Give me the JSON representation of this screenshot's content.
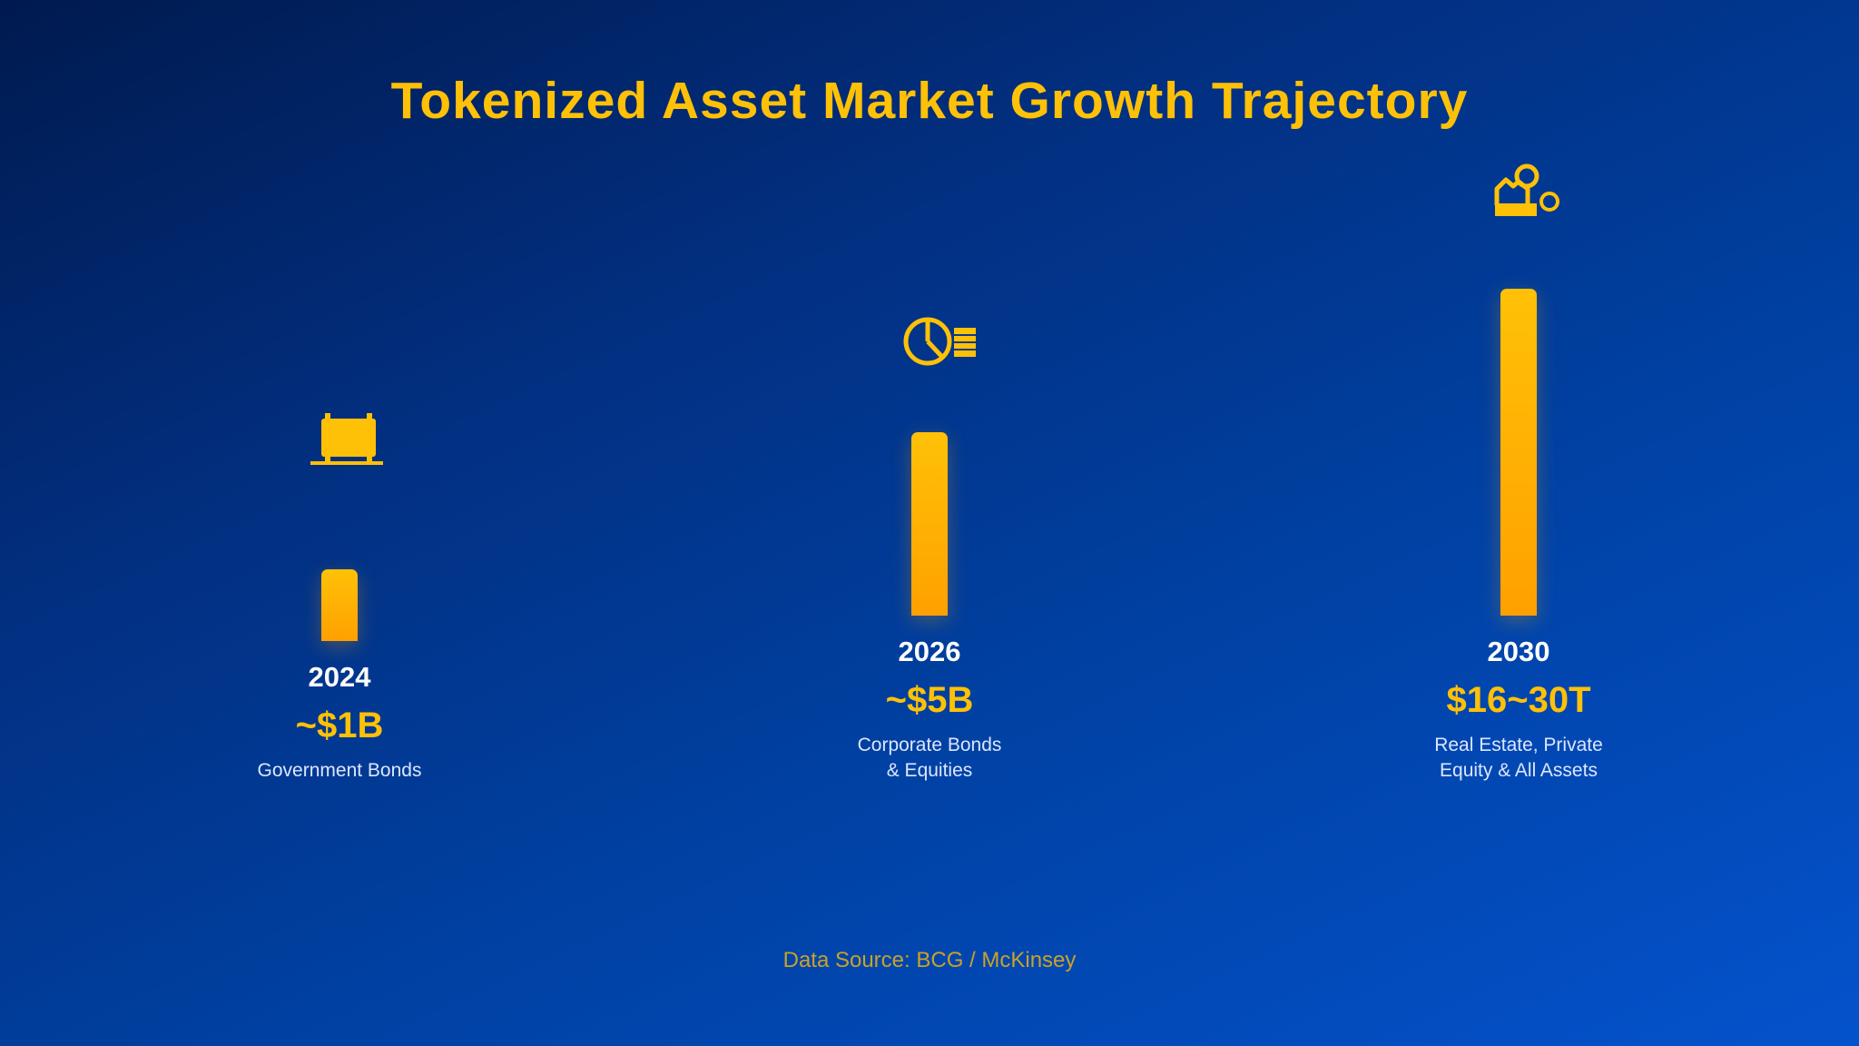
{
  "title": "Tokenized Asset Market Growth Trajectory",
  "source": "Data Source: BCG / McKinsey",
  "colors": {
    "accent": "#ffc107",
    "bar_bottom": "#ffa000",
    "text": "#ffffff",
    "background_start": "#001a4f",
    "background_end": "#0452cc"
  },
  "chart_data": {
    "type": "bar",
    "title": "Tokenized Asset Market Growth Trajectory",
    "categories": [
      "2024",
      "2026",
      "2030"
    ],
    "series": [
      {
        "values_text": [
          "~$1B",
          "~$5B",
          "$16~30T"
        ],
        "descriptions": [
          [
            "Government Bonds"
          ],
          [
            "Corporate Bonds",
            "& Equities"
          ],
          [
            "Real Estate, Private",
            "Equity & All Assets"
          ]
        ],
        "icons": [
          "bond-certificate-icon",
          "pie-chart-coins-icon",
          "house-coins-icon"
        ]
      }
    ],
    "bar_levels_relative": [
      0.22,
      0.56,
      1.0
    ],
    "grid": false,
    "legend": "none"
  }
}
